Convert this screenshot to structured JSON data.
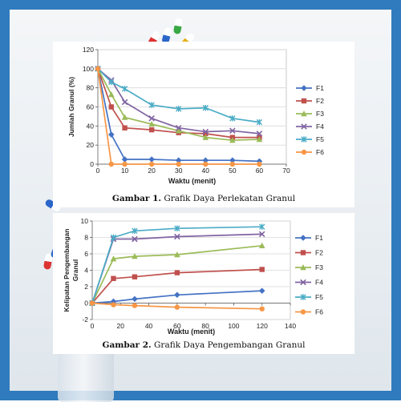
{
  "chart_data": [
    {
      "type": "line",
      "caption_bold": "Gambar 1.",
      "caption_text": " Grafik Daya Perlekatan Granul",
      "xlabel": "Waktu (menit)",
      "ylabel": "Jumlah Granul (%)",
      "xlim": [
        0,
        70
      ],
      "ylim": [
        0,
        120
      ],
      "xticks": [
        0,
        10,
        20,
        30,
        40,
        50,
        60,
        70
      ],
      "yticks": [
        0,
        20,
        40,
        60,
        80,
        100,
        120
      ],
      "legend_position": "right",
      "series": [
        {
          "name": "F1",
          "color": "#4472c4",
          "marker": "diamond",
          "x": [
            0,
            5,
            10,
            20,
            30,
            40,
            50,
            60
          ],
          "y": [
            100,
            31,
            5,
            5,
            4,
            4,
            4,
            3
          ]
        },
        {
          "name": "F2",
          "color": "#c0504d",
          "marker": "square",
          "x": [
            0,
            5,
            10,
            20,
            30,
            40,
            50,
            60
          ],
          "y": [
            100,
            60,
            38,
            36,
            33,
            32,
            28,
            28
          ]
        },
        {
          "name": "F3",
          "color": "#9bbb59",
          "marker": "triangle",
          "x": [
            0,
            5,
            10,
            20,
            30,
            40,
            50,
            60
          ],
          "y": [
            100,
            73,
            49,
            42,
            35,
            28,
            25,
            26
          ]
        },
        {
          "name": "F4",
          "color": "#8064a2",
          "marker": "x",
          "x": [
            0,
            5,
            10,
            20,
            30,
            40,
            50,
            60
          ],
          "y": [
            100,
            88,
            65,
            48,
            38,
            34,
            35,
            32
          ]
        },
        {
          "name": "F5",
          "color": "#4bacc6",
          "marker": "star",
          "x": [
            0,
            5,
            10,
            20,
            30,
            40,
            50,
            60
          ],
          "y": [
            100,
            86,
            79,
            62,
            58,
            59,
            48,
            44
          ]
        },
        {
          "name": "F6",
          "color": "#f79646",
          "marker": "circle",
          "x": [
            0,
            5,
            10,
            20,
            30,
            40,
            50,
            60
          ],
          "y": [
            100,
            0,
            0,
            0,
            0,
            0,
            0,
            0
          ]
        }
      ]
    },
    {
      "type": "line",
      "caption_bold": "Gambar 2.",
      "caption_text": " Grafik Daya Pengembangan Granul",
      "xlabel": "Waktu (menit)",
      "ylabel_lines": [
        "Kelipatan Pengembangan",
        "Granul"
      ],
      "xlim": [
        0,
        140
      ],
      "ylim": [
        -2,
        10
      ],
      "xticks": [
        0,
        20,
        40,
        60,
        80,
        100,
        120,
        140
      ],
      "yticks": [
        -2,
        0,
        2,
        4,
        6,
        8,
        10
      ],
      "legend_position": "right",
      "series": [
        {
          "name": "F1",
          "color": "#4472c4",
          "marker": "diamond",
          "x": [
            0,
            15,
            30,
            60,
            120
          ],
          "y": [
            0,
            0.2,
            0.5,
            1.0,
            1.5
          ]
        },
        {
          "name": "F2",
          "color": "#c0504d",
          "marker": "square",
          "x": [
            0,
            15,
            30,
            60,
            120
          ],
          "y": [
            0,
            3.0,
            3.2,
            3.7,
            4.1
          ]
        },
        {
          "name": "F3",
          "color": "#9bbb59",
          "marker": "triangle",
          "x": [
            0,
            15,
            30,
            60,
            120
          ],
          "y": [
            0,
            5.4,
            5.7,
            5.9,
            7.0
          ]
        },
        {
          "name": "F4",
          "color": "#8064a2",
          "marker": "x",
          "x": [
            0,
            15,
            30,
            60,
            120
          ],
          "y": [
            0,
            7.8,
            7.8,
            8.1,
            8.4
          ]
        },
        {
          "name": "F5",
          "color": "#4bacc6",
          "marker": "star",
          "x": [
            0,
            15,
            30,
            60,
            120
          ],
          "y": [
            0,
            8.0,
            8.8,
            9.1,
            9.3
          ]
        },
        {
          "name": "F6",
          "color": "#f79646",
          "marker": "circle",
          "x": [
            0,
            15,
            30,
            60,
            120
          ],
          "y": [
            0,
            -0.2,
            -0.3,
            -0.5,
            -0.7
          ]
        }
      ]
    }
  ]
}
